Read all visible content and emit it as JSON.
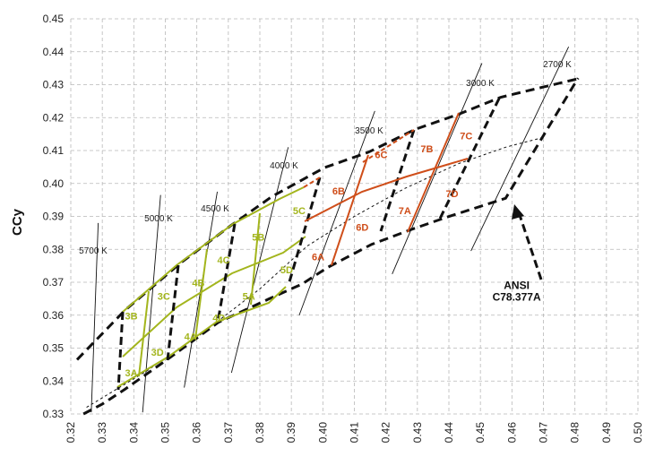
{
  "chart_data": {
    "type": "line",
    "title": "",
    "xlabel": "",
    "ylabel": "CCy",
    "xlim": [
      0.32,
      0.5
    ],
    "ylim": [
      0.33,
      0.45
    ],
    "x_ticks": [
      "0.32",
      "0.33",
      "0.34",
      "0.35",
      "0.36",
      "0.37",
      "0.38",
      "0.39",
      "0.40",
      "0.41",
      "0.42",
      "0.43",
      "0.44",
      "0.45",
      "0.46",
      "0.47",
      "0.48",
      "0.49",
      "0.50"
    ],
    "y_ticks": [
      "0.33",
      "0.34",
      "0.35",
      "0.36",
      "0.37",
      "0.38",
      "0.39",
      "0.40",
      "0.41",
      "0.42",
      "0.43",
      "0.44",
      "0.45"
    ],
    "grid": "dashed",
    "colors": {
      "quadrangle": "#111111",
      "bins_yellow": "#a3b51d",
      "bins_orange": "#cf4e1a",
      "grid": "#b8b8b8"
    },
    "cct_lines": [
      {
        "label": "5700 K",
        "from": [
          0.3265,
          0.3305
        ],
        "to": [
          0.3287,
          0.388
        ]
      },
      {
        "label": "5000 K",
        "from": [
          0.3428,
          0.3305
        ],
        "to": [
          0.3485,
          0.3965
        ]
      },
      {
        "label": "4500 K",
        "from": [
          0.356,
          0.338
        ],
        "to": [
          0.3665,
          0.3975
        ]
      },
      {
        "label": "4000 K",
        "from": [
          0.371,
          0.3425
        ],
        "to": [
          0.389,
          0.411
        ]
      },
      {
        "label": "3500 K",
        "from": [
          0.3925,
          0.36
        ],
        "to": [
          0.4165,
          0.422
        ]
      },
      {
        "label": "3000 K",
        "from": [
          0.422,
          0.3725
        ],
        "to": [
          0.4505,
          0.4365
        ]
      },
      {
        "label": "2700 K",
        "from": [
          0.447,
          0.3795
        ],
        "to": [
          0.478,
          0.4415
        ]
      }
    ],
    "series": [
      {
        "name": "ANSI C78.377A",
        "style": "dashed-thick",
        "upper": [
          [
            0.322,
            0.3465
          ],
          [
            0.3372,
            0.3615
          ],
          [
            0.355,
            0.376
          ],
          [
            0.3705,
            0.387
          ],
          [
            0.3838,
            0.396
          ],
          [
            0.4005,
            0.4048
          ],
          [
            0.4145,
            0.4095
          ],
          [
            0.4295,
            0.4165
          ],
          [
            0.443,
            0.421
          ],
          [
            0.4565,
            0.4262
          ],
          [
            0.47,
            0.4293
          ],
          [
            0.4818,
            0.432
          ]
        ],
        "lower": [
          [
            0.324,
            0.33
          ],
          [
            0.33,
            0.333
          ],
          [
            0.3372,
            0.3375
          ],
          [
            0.351,
            0.3468
          ],
          [
            0.3668,
            0.3578
          ],
          [
            0.383,
            0.365
          ],
          [
            0.3935,
            0.3695
          ],
          [
            0.4015,
            0.3745
          ],
          [
            0.4155,
            0.3815
          ],
          [
            0.428,
            0.386
          ],
          [
            0.4395,
            0.3898
          ],
          [
            0.458,
            0.3955
          ],
          [
            0.481,
            0.432
          ]
        ],
        "center": [
          [
            0.325,
            0.332
          ],
          [
            0.344,
            0.343
          ],
          [
            0.361,
            0.354
          ],
          [
            0.38,
            0.368
          ],
          [
            0.395,
            0.381
          ],
          [
            0.41,
            0.39
          ],
          [
            0.426,
            0.3985
          ],
          [
            0.443,
            0.406
          ],
          [
            0.458,
            0.411
          ],
          [
            0.47,
            0.414
          ]
        ]
      }
    ],
    "bins": [
      {
        "label": "3A",
        "x": 0.3392,
        "y": 0.3425
      },
      {
        "label": "3B",
        "x": 0.3392,
        "y": 0.3598
      },
      {
        "label": "3C",
        "x": 0.3495,
        "y": 0.3658
      },
      {
        "label": "3D",
        "x": 0.3475,
        "y": 0.3488
      },
      {
        "label": "4A",
        "x": 0.358,
        "y": 0.3535
      },
      {
        "label": "4B",
        "x": 0.3605,
        "y": 0.3698
      },
      {
        "label": "4C",
        "x": 0.3685,
        "y": 0.3768
      },
      {
        "label": "4D",
        "x": 0.367,
        "y": 0.3593
      },
      {
        "label": "5A",
        "x": 0.3765,
        "y": 0.3658
      },
      {
        "label": "5B",
        "x": 0.3795,
        "y": 0.3838
      },
      {
        "label": "5C",
        "x": 0.3925,
        "y": 0.3918
      },
      {
        "label": "5D",
        "x": 0.3885,
        "y": 0.3738
      },
      {
        "label": "6A",
        "x": 0.3985,
        "y": 0.3778
      },
      {
        "label": "6B",
        "x": 0.405,
        "y": 0.3978
      },
      {
        "label": "6C",
        "x": 0.4185,
        "y": 0.4088
      },
      {
        "label": "6D",
        "x": 0.4125,
        "y": 0.3868
      },
      {
        "label": "7A",
        "x": 0.426,
        "y": 0.3918
      },
      {
        "label": "7B",
        "x": 0.433,
        "y": 0.4105
      },
      {
        "label": "7C",
        "x": 0.4455,
        "y": 0.4145
      },
      {
        "label": "7D",
        "x": 0.441,
        "y": 0.397
      }
    ],
    "annotations": [
      {
        "text": "ANSI",
        "x": 0.4615,
        "y": 0.369
      },
      {
        "text": "C78.377A",
        "x": 0.4615,
        "y": 0.3655
      }
    ]
  }
}
